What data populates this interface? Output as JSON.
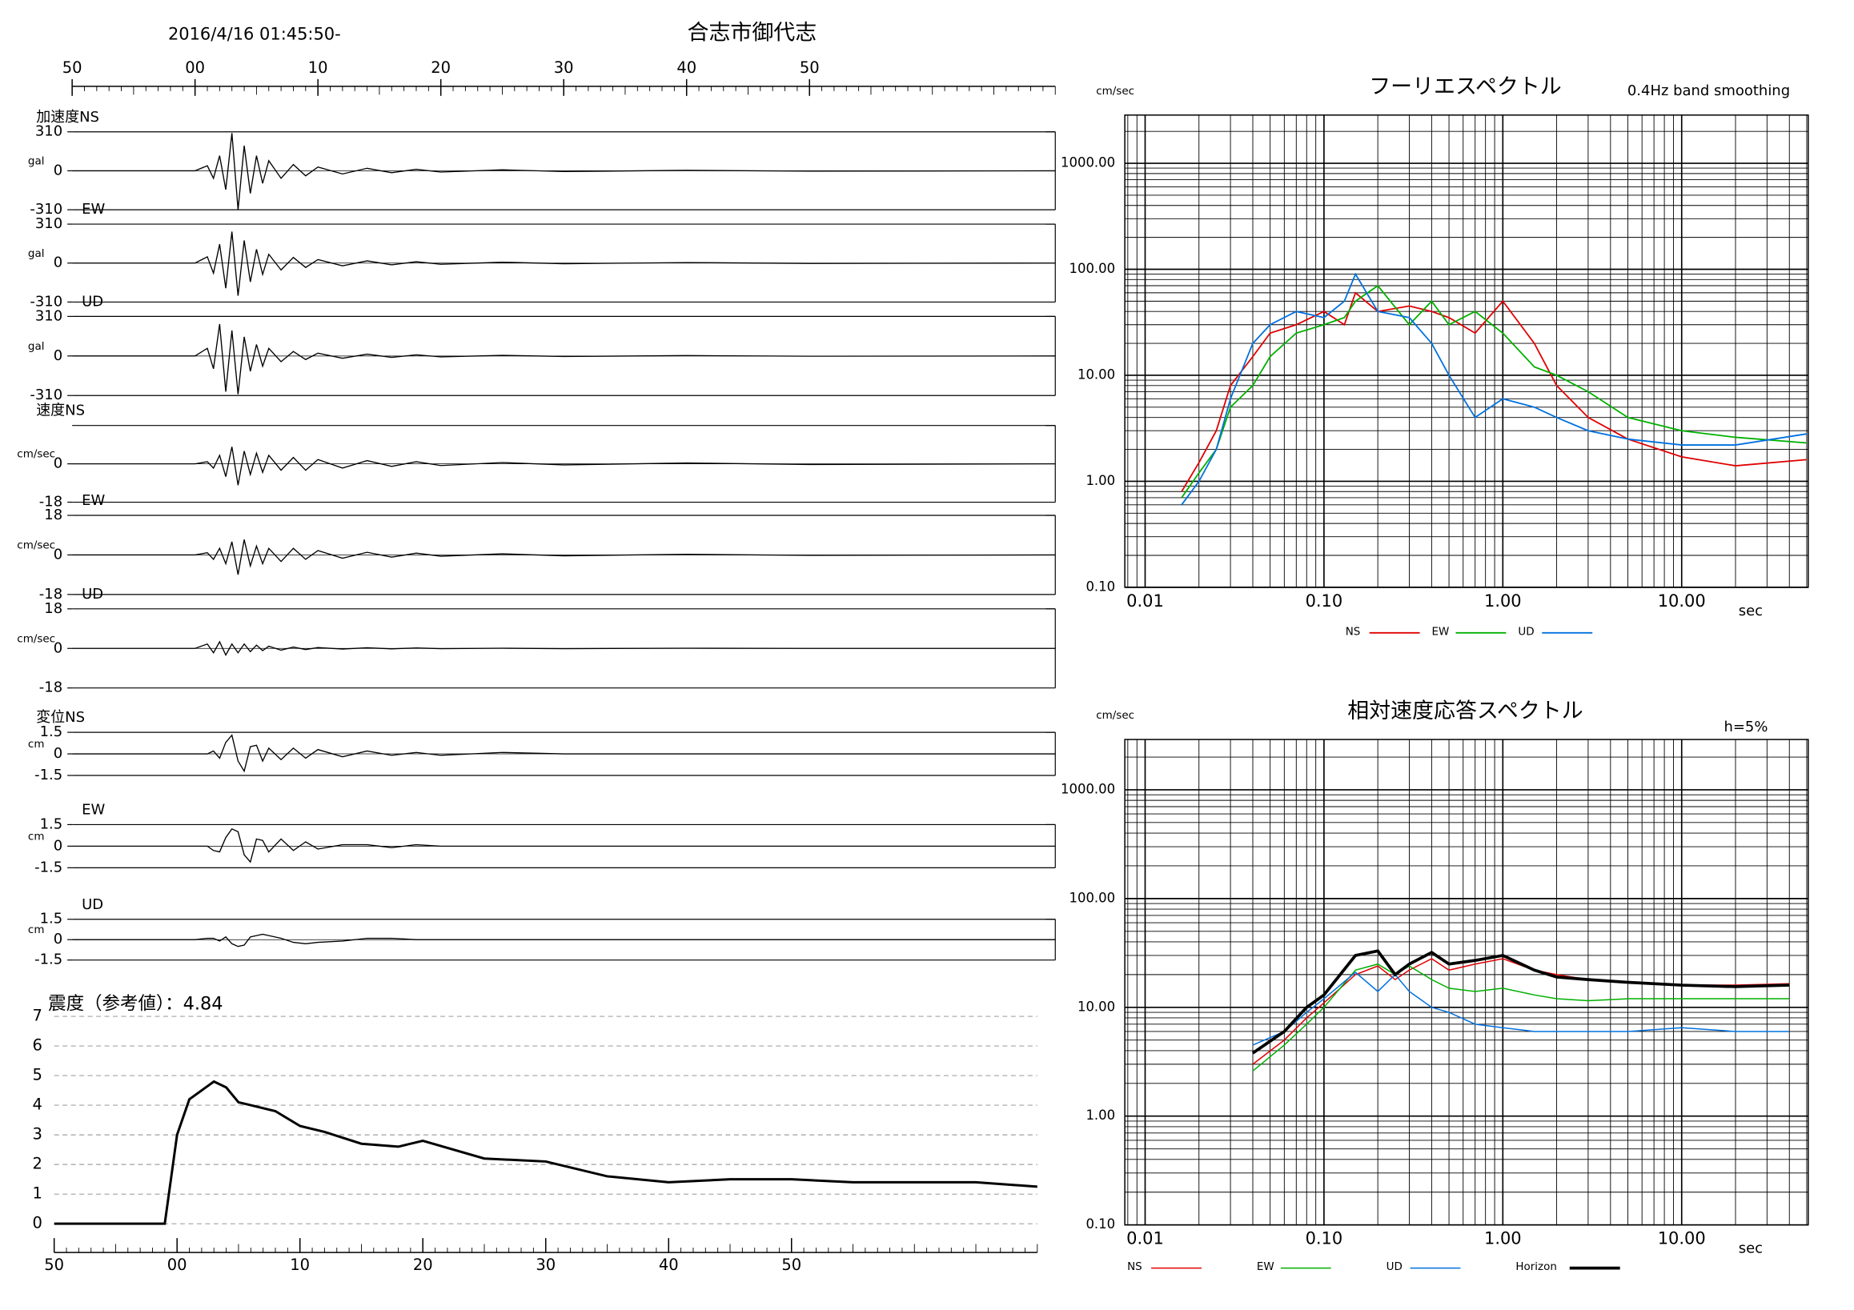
{
  "header": {
    "title": "合志市御代志",
    "subtitle": "2016/4/16 01:45:50-"
  },
  "chart_data": [
    {
      "type": "line",
      "xlim": [
        0,
        80
      ],
      "xticks": [
        {
          "value": 0,
          "label": "50"
        },
        {
          "value": 10,
          "label": "00"
        },
        {
          "value": 20,
          "label": "10"
        },
        {
          "value": 30,
          "label": "20"
        },
        {
          "value": 40,
          "label": "30"
        },
        {
          "value": 50,
          "label": "40"
        },
        {
          "value": 60,
          "label": "50"
        }
      ],
      "panels": [
        {
          "label": "加速度NS",
          "ylabel": "gal",
          "ylim": [
            -310,
            310
          ],
          "yticks": [
            310,
            0,
            -310
          ],
          "color": "#000000",
          "x": [
            0,
            10,
            11,
            11.5,
            12,
            12.5,
            13,
            13.5,
            14,
            14.5,
            15,
            15.5,
            16,
            17,
            18,
            19,
            20,
            22,
            24,
            26,
            28,
            30,
            35,
            40,
            50,
            60,
            80
          ],
          "values": [
            0,
            0,
            40,
            -60,
            120,
            -150,
            300,
            -310,
            200,
            -180,
            120,
            -100,
            80,
            -60,
            50,
            -40,
            30,
            -25,
            20,
            -15,
            12,
            -10,
            8,
            -6,
            4,
            -3,
            0
          ]
        },
        {
          "label": "EW",
          "ylabel": "gal",
          "ylim": [
            -310,
            310
          ],
          "yticks": [
            310,
            0,
            -310
          ],
          "color": "#000000",
          "x": [
            0,
            10,
            11,
            11.5,
            12,
            12.5,
            13,
            13.5,
            14,
            14.5,
            15,
            15.5,
            16,
            17,
            18,
            19,
            20,
            22,
            24,
            26,
            28,
            30,
            35,
            40,
            50,
            60,
            80
          ],
          "values": [
            0,
            0,
            50,
            -80,
            150,
            -200,
            250,
            -260,
            180,
            -150,
            110,
            -90,
            70,
            -55,
            45,
            -35,
            28,
            -22,
            18,
            -14,
            11,
            -9,
            7,
            -5,
            4,
            -3,
            0
          ]
        },
        {
          "label": "UD",
          "ylabel": "gal",
          "ylim": [
            -310,
            310
          ],
          "yticks": [
            310,
            0,
            -310
          ],
          "color": "#000000",
          "x": [
            0,
            10,
            11,
            11.5,
            12,
            12.5,
            13,
            13.5,
            14,
            14.5,
            15,
            15.5,
            16,
            17,
            18,
            19,
            20,
            22,
            24,
            26,
            28,
            30,
            35,
            40,
            50,
            60,
            80
          ],
          "values": [
            0,
            0,
            60,
            -100,
            250,
            -280,
            200,
            -300,
            150,
            -120,
            90,
            -80,
            60,
            -45,
            35,
            -28,
            22,
            -18,
            14,
            -11,
            9,
            -7,
            5,
            -4,
            3,
            -2,
            0
          ]
        },
        {
          "label": "速度NS",
          "ylabel": "cm/sec",
          "ylim": [
            -18,
            18
          ],
          "yticks": [
            0,
            -18
          ],
          "color": "#000000",
          "x": [
            0,
            10,
            11,
            11.5,
            12,
            12.5,
            13,
            13.5,
            14,
            14.5,
            15,
            15.5,
            16,
            17,
            18,
            19,
            20,
            22,
            24,
            26,
            28,
            30,
            35,
            40,
            50,
            60,
            80
          ],
          "values": [
            0,
            0,
            1,
            -2,
            4,
            -6,
            8,
            -10,
            6,
            -5,
            5,
            -4,
            4,
            -3,
            3,
            -3,
            2,
            -2,
            1.5,
            -1.2,
            1,
            -0.8,
            0.6,
            -0.5,
            0.4,
            -0.3,
            0
          ]
        },
        {
          "label": "EW",
          "ylabel": "cm/sec",
          "ylim": [
            -18,
            18
          ],
          "yticks": [
            18,
            0,
            -18
          ],
          "color": "#000000",
          "x": [
            0,
            10,
            11,
            11.5,
            12,
            12.5,
            13,
            13.5,
            14,
            14.5,
            15,
            15.5,
            16,
            17,
            18,
            19,
            20,
            22,
            24,
            26,
            28,
            30,
            35,
            40,
            50,
            60,
            80
          ],
          "values": [
            0,
            0,
            1,
            -2,
            3,
            -4,
            6,
            -9,
            7,
            -5,
            4,
            -4,
            3,
            -3,
            3,
            -2,
            2,
            -1.5,
            1.2,
            -1,
            0.8,
            -0.6,
            0.5,
            -0.4,
            0.3,
            -0.2,
            0
          ]
        },
        {
          "label": "UD",
          "ylabel": "cm/sec",
          "ylim": [
            -18,
            18
          ],
          "yticks": [
            18,
            0,
            -18
          ],
          "color": "#000000",
          "x": [
            0,
            10,
            11,
            11.5,
            12,
            12.5,
            13,
            13.5,
            14,
            14.5,
            15,
            15.5,
            16,
            17,
            18,
            19,
            20,
            22,
            24,
            26,
            28,
            30,
            35,
            40,
            50,
            60,
            80
          ],
          "values": [
            0,
            0,
            2,
            -2,
            3,
            -3,
            2,
            -2,
            2,
            -1.5,
            1.5,
            -1,
            1,
            -0.8,
            0.6,
            -0.5,
            0.4,
            -0.3,
            0.3,
            -0.2,
            0.2,
            -0.1,
            0.1,
            -0.1,
            0.1,
            0,
            0
          ]
        },
        {
          "label": "変位NS",
          "ylabel": "cm",
          "ylim": [
            -1.5,
            1.5
          ],
          "yticks": [
            1.5,
            0,
            -1.5
          ],
          "color": "#000000",
          "x": [
            0,
            10,
            11,
            11.5,
            12,
            12.5,
            13,
            13.5,
            14,
            14.5,
            15,
            15.5,
            16,
            17,
            18,
            19,
            20,
            22,
            24,
            26,
            28,
            30,
            35,
            40,
            50,
            60,
            80
          ],
          "values": [
            0,
            0,
            0,
            0.2,
            -0.3,
            0.8,
            1.3,
            -0.5,
            -1.2,
            0.5,
            0.6,
            -0.5,
            0.4,
            -0.4,
            0.4,
            -0.3,
            0.3,
            -0.2,
            0.2,
            -0.1,
            0.1,
            -0.1,
            0.1,
            0,
            0,
            0,
            0
          ]
        },
        {
          "label": "EW",
          "ylabel": "cm",
          "ylim": [
            -1.5,
            1.5
          ],
          "yticks": [
            1.5,
            0,
            -1.5
          ],
          "color": "#000000",
          "x": [
            0,
            10,
            11,
            11.5,
            12,
            12.5,
            13,
            13.5,
            14,
            14.5,
            15,
            15.5,
            16,
            17,
            18,
            19,
            20,
            22,
            24,
            26,
            28,
            30,
            35,
            40,
            50,
            60,
            80
          ],
          "values": [
            0,
            0,
            0,
            -0.3,
            -0.4,
            0.6,
            1.2,
            1.0,
            -0.6,
            -1.1,
            0.5,
            0.4,
            -0.4,
            0.5,
            -0.3,
            0.3,
            -0.2,
            0.1,
            0.1,
            -0.1,
            0.1,
            0,
            0,
            0,
            0,
            0,
            0
          ]
        },
        {
          "label": "UD",
          "ylabel": "cm",
          "ylim": [
            -1.5,
            1.5
          ],
          "yticks": [
            1.5,
            0,
            -1.5
          ],
          "color": "#000000",
          "x": [
            0,
            10,
            11,
            11.5,
            12,
            12.5,
            13,
            13.5,
            14,
            14.5,
            15,
            15.5,
            16,
            17,
            18,
            19,
            20,
            22,
            24,
            26,
            28,
            30,
            35,
            40,
            50,
            60,
            80
          ],
          "values": [
            0,
            0,
            0.1,
            0.1,
            -0.1,
            0.2,
            -0.3,
            -0.5,
            -0.4,
            0.2,
            0.3,
            0.4,
            0.3,
            0.1,
            -0.2,
            -0.3,
            -0.2,
            -0.1,
            0.1,
            0.1,
            0,
            0,
            0,
            0,
            0,
            0,
            0
          ]
        }
      ]
    },
    {
      "type": "line",
      "title": "震度（参考値）：4.84",
      "color": "#000000",
      "grid": true,
      "xlim": [
        0,
        80
      ],
      "xticks": [
        {
          "value": 0,
          "label": "50"
        },
        {
          "value": 10,
          "label": "00"
        },
        {
          "value": 20,
          "label": "10"
        },
        {
          "value": 30,
          "label": "20"
        },
        {
          "value": 40,
          "label": "30"
        },
        {
          "value": 50,
          "label": "40"
        },
        {
          "value": 60,
          "label": "50"
        }
      ],
      "ylim": [
        0,
        7
      ],
      "yticks": [
        0,
        1,
        2,
        3,
        4,
        5,
        6,
        7
      ],
      "x": [
        0,
        9,
        9.5,
        10,
        11,
        12,
        13,
        14,
        15,
        16,
        18,
        20,
        22,
        25,
        28,
        30,
        35,
        40,
        45,
        50,
        55,
        60,
        65,
        70,
        75,
        80
      ],
      "values": [
        0,
        0,
        1.5,
        3,
        4.2,
        4.5,
        4.8,
        4.6,
        4.1,
        4,
        3.8,
        3.3,
        3.1,
        2.7,
        2.6,
        2.8,
        2.2,
        2.1,
        1.6,
        1.4,
        1.5,
        1.5,
        1.4,
        1.4,
        1.4,
        1.25
      ]
    },
    {
      "type": "line",
      "title": "フーリエスペクトル",
      "subtitle": "0.4Hz band smoothing",
      "ylabel": "cm/sec",
      "xlabel": "sec",
      "log_x": true,
      "log_y": true,
      "grid": true,
      "xlim": [
        0.0077,
        51
      ],
      "xticks": [
        0.01,
        {
          "value": 0.1,
          "label": "0.10"
        },
        {
          "value": 1,
          "label": "1.00"
        },
        {
          "value": 10,
          "label": "10.00"
        }
      ],
      "ylim": [
        0.1,
        2850
      ],
      "yticks": [
        {
          "value": 0.1,
          "label": "0.10"
        },
        {
          "value": 1,
          "label": "1.00"
        },
        {
          "value": 10,
          "label": "10.00"
        },
        {
          "value": 100,
          "label": "100.00"
        },
        {
          "value": 1000,
          "label": "1000.00"
        }
      ],
      "x": [
        0.016,
        0.02,
        0.025,
        0.03,
        0.04,
        0.05,
        0.07,
        0.1,
        0.13,
        0.15,
        0.2,
        0.3,
        0.4,
        0.5,
        0.7,
        1,
        1.5,
        2,
        3,
        5,
        10,
        20,
        50
      ],
      "series": [
        {
          "name": "NS",
          "color": "#e00000",
          "values": [
            0.8,
            1.5,
            3,
            8,
            15,
            25,
            30,
            40,
            30,
            60,
            40,
            45,
            40,
            35,
            25,
            50,
            20,
            8,
            4,
            2.5,
            1.7,
            1.4,
            1.6
          ]
        },
        {
          "name": "EW",
          "color": "#00b000",
          "values": [
            0.7,
            1.2,
            2,
            5,
            8,
            15,
            25,
            30,
            35,
            50,
            70,
            30,
            50,
            30,
            40,
            25,
            12,
            10,
            7,
            4,
            3,
            2.6,
            2.3
          ]
        },
        {
          "name": "UD",
          "color": "#0070e0",
          "values": [
            0.6,
            1,
            2,
            6,
            20,
            30,
            40,
            35,
            50,
            90,
            40,
            35,
            20,
            10,
            4,
            6,
            5,
            4,
            3,
            2.5,
            2.2,
            2.2,
            2.8
          ]
        }
      ]
    },
    {
      "type": "line",
      "title": "相対速度応答スペクトル",
      "annotation": "h=5%",
      "ylabel": "cm/sec",
      "xlabel": "sec",
      "log_x": true,
      "log_y": true,
      "grid": true,
      "xlim": [
        0.0077,
        51
      ],
      "xticks": [
        0.01,
        {
          "value": 0.1,
          "label": "0.10"
        },
        {
          "value": 1,
          "label": "1.00"
        },
        {
          "value": 10,
          "label": "10.00"
        }
      ],
      "ylim": [
        0.1,
        2900
      ],
      "yticks": [
        {
          "value": 0.1,
          "label": "0.10"
        },
        {
          "value": 1,
          "label": "1.00"
        },
        {
          "value": 10,
          "label": "10.00"
        },
        {
          "value": 100,
          "label": "100.00"
        },
        {
          "value": 1000,
          "label": "1000.00"
        }
      ],
      "x": [
        0.04,
        0.06,
        0.08,
        0.1,
        0.15,
        0.2,
        0.25,
        0.3,
        0.4,
        0.5,
        0.7,
        1,
        1.5,
        2,
        3,
        5,
        10,
        20,
        40
      ],
      "series": [
        {
          "name": "NS",
          "color": "#e00000",
          "width": 1,
          "values": [
            3,
            5,
            8,
            11,
            20,
            24,
            18,
            22,
            28,
            22,
            25,
            28,
            22,
            20,
            18,
            17,
            16,
            16,
            16.5
          ]
        },
        {
          "name": "EW",
          "color": "#00b000",
          "width": 1,
          "values": [
            2.6,
            4.5,
            7,
            10,
            22,
            25,
            20,
            24,
            18,
            15,
            14,
            15,
            13,
            12,
            11.5,
            12,
            12,
            12,
            12
          ]
        },
        {
          "name": "UD",
          "color": "#0070e0",
          "width": 1,
          "values": [
            4.5,
            6,
            9,
            12,
            21,
            14,
            20,
            14,
            10,
            9,
            7,
            6.5,
            6,
            6,
            6,
            6,
            6.5,
            6,
            6
          ]
        },
        {
          "name": "Horizon",
          "color": "#000000",
          "width": 2.5,
          "values": [
            3.8,
            6,
            10,
            13,
            30,
            33,
            20,
            25,
            32,
            25,
            27,
            30,
            22,
            19,
            18,
            17,
            16,
            15.5,
            16
          ]
        }
      ]
    }
  ]
}
